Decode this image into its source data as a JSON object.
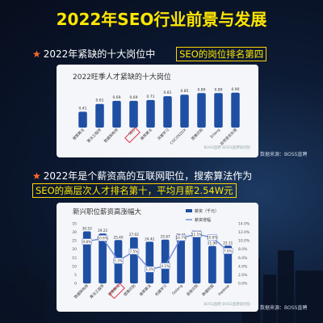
{
  "title": "2022年SEO行业前景与发展",
  "section1": {
    "text": "2022年紧缺的十大岗位中",
    "highlight": "SEO的岗位排名第四"
  },
  "section2": {
    "line1": "2022年是个薪资高的互联网职位，搜索算法作为",
    "line2": "SEO的高层次人才排名第十，平均月薪2.54W元"
  },
  "source_note": "数据来源：BOSS直聘",
  "colors": {
    "accent": "#ffe600",
    "bar": "#1e4fa3",
    "line": "#7a8fd6",
    "highlight_box": "#e0323c"
  },
  "chart_data": [
    {
      "type": "bar",
      "title": "2022旺季人才紧缺的十大岗位",
      "categories": [
        "搜索算法",
        "算法工程师",
        "数据架构师",
        "SEO",
        "推荐算法",
        "深度学习",
        "COCOS2DX",
        "图像识别",
        "Erlang",
        "自然语言处理"
      ],
      "values": [
        0.41,
        0.61,
        0.69,
        0.69,
        0.71,
        0.81,
        0.85,
        0.89,
        0.89,
        0.9
      ],
      "value_labels": [
        "0.41",
        "0.61",
        "0.69",
        "0.69",
        "0.71",
        "0.81",
        "0.85",
        "0.89",
        "0.89",
        "0.90"
      ],
      "ylim": [
        0,
        1
      ],
      "highlight_category": "SEO",
      "watermark": "BOSS直聘 BOSS直聘研究院"
    },
    {
      "type": "bar+line",
      "title": "新兴职位薪资高涨幅大",
      "legend": [
        "薪资（千元）",
        "薪资增幅"
      ],
      "categories": [
        "数据架构师",
        "算法工程师",
        "搜索算法",
        "图像识别",
        "推荐算法",
        "机器学习",
        "Golang",
        "语音识别",
        "数据挖掘",
        "Hadoop"
      ],
      "salary": [
        30.53,
        29.22,
        25.4,
        27.02,
        24.42,
        25.67,
        26.71,
        28.3,
        21.96,
        22.11
      ],
      "salary_labels": [
        "30.53",
        "29.22",
        "25.40",
        "27.02",
        "24.42",
        "25.67",
        "26.71",
        "28.30",
        "21.96",
        "22.11"
      ],
      "growth": [
        9.8,
        10.6,
        5.3,
        7.5,
        3.3,
        4.1,
        10.7,
        11.5,
        10.8,
        7.6
      ],
      "growth_labels": [
        "9.8%",
        "10.6%",
        "5.3%",
        "7.5%",
        "3.3%",
        "4.1%",
        "10.7%",
        "11.5%",
        "10.8%",
        "7.6%"
      ],
      "ylim_left": [
        0,
        35
      ],
      "ylim_right": [
        0,
        14
      ],
      "left_ticks": [
        "0",
        "5",
        "10",
        "15",
        "20",
        "25",
        "30",
        "35"
      ],
      "right_ticks": [
        "0.0%",
        "2.0%",
        "4.0%",
        "6.0%",
        "8.0%",
        "10.0%",
        "12.0%",
        "14.0%"
      ],
      "highlight_category": "搜索算法",
      "watermark": "BOSS直聘 BOSS直聘研究院"
    }
  ]
}
